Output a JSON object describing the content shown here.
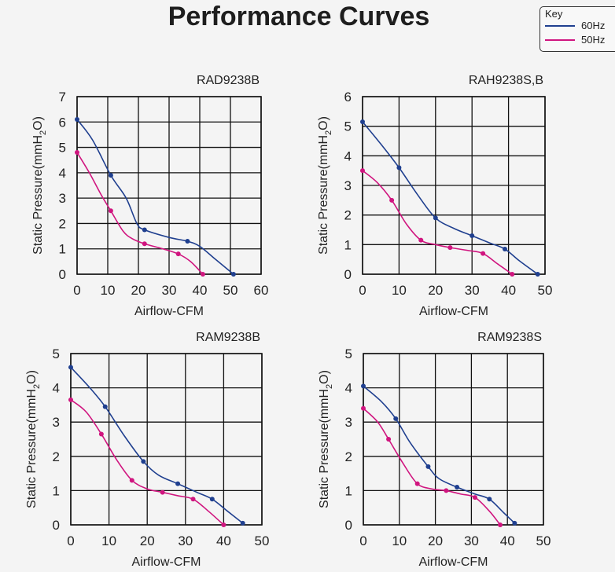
{
  "title": "Performance Curves",
  "legend": {
    "title": "Key",
    "items": [
      {
        "label": "60Hz",
        "color": "#1f3f8f"
      },
      {
        "label": "50Hz",
        "color": "#d0157f"
      }
    ]
  },
  "chart_data": [
    {
      "type": "line",
      "title": "RAD9238B",
      "xlabel": "Airflow-CFM",
      "ylabel": "Static Pressure(mmH2O)",
      "xlim": [
        0,
        60
      ],
      "ylim": [
        0,
        7
      ],
      "xticks": [
        0,
        10,
        20,
        30,
        40,
        50,
        60
      ],
      "yticks": [
        0,
        1,
        2,
        3,
        4,
        5,
        6,
        7
      ],
      "grid": true,
      "series": [
        {
          "name": "60Hz",
          "color": "#1f3f8f",
          "x": [
            0,
            11,
            22,
            36,
            51
          ],
          "y": [
            6.1,
            3.9,
            1.75,
            1.3,
            0
          ],
          "curve": [
            [
              0,
              6.1
            ],
            [
              5,
              5.3
            ],
            [
              11,
              3.9
            ],
            [
              16,
              3.0
            ],
            [
              19.5,
              2.0
            ],
            [
              22,
              1.75
            ],
            [
              30,
              1.45
            ],
            [
              36,
              1.3
            ],
            [
              40,
              1.1
            ],
            [
              45,
              0.6
            ],
            [
              51,
              0
            ]
          ]
        },
        {
          "name": "50Hz",
          "color": "#d0157f",
          "x": [
            0,
            11,
            22,
            33,
            41
          ],
          "y": [
            4.8,
            2.5,
            1.2,
            0.8,
            0
          ],
          "curve": [
            [
              0,
              4.8
            ],
            [
              4,
              4.0
            ],
            [
              8,
              3.1
            ],
            [
              11,
              2.5
            ],
            [
              15,
              1.7
            ],
            [
              18,
              1.4
            ],
            [
              22,
              1.2
            ],
            [
              28,
              1.0
            ],
            [
              33,
              0.8
            ],
            [
              37,
              0.5
            ],
            [
              41,
              0
            ]
          ]
        }
      ]
    },
    {
      "type": "line",
      "title": "RAH9238S,B",
      "xlabel": "Airflow-CFM",
      "ylabel": "Static Pressure(mmH2O)",
      "xlim": [
        0,
        50
      ],
      "ylim": [
        0,
        6
      ],
      "xticks": [
        0,
        10,
        20,
        30,
        40,
        50
      ],
      "yticks": [
        0,
        1,
        2,
        3,
        4,
        5,
        6
      ],
      "grid": true,
      "series": [
        {
          "name": "60Hz",
          "color": "#1f3f8f",
          "x": [
            0,
            10,
            20,
            30,
            39,
            48
          ],
          "y": [
            5.15,
            3.6,
            1.9,
            1.3,
            0.85,
            0
          ],
          "curve": [
            [
              0,
              5.15
            ],
            [
              5,
              4.4
            ],
            [
              10,
              3.6
            ],
            [
              15,
              2.7
            ],
            [
              20,
              1.9
            ],
            [
              25,
              1.55
            ],
            [
              30,
              1.3
            ],
            [
              35,
              1.05
            ],
            [
              39,
              0.85
            ],
            [
              43,
              0.45
            ],
            [
              48,
              0
            ]
          ]
        },
        {
          "name": "50Hz",
          "color": "#d0157f",
          "x": [
            0,
            8,
            16,
            24,
            33,
            41
          ],
          "y": [
            3.5,
            2.5,
            1.15,
            0.9,
            0.7,
            0
          ],
          "curve": [
            [
              0,
              3.5
            ],
            [
              4,
              3.1
            ],
            [
              8,
              2.5
            ],
            [
              12,
              1.7
            ],
            [
              16,
              1.15
            ],
            [
              20,
              1.0
            ],
            [
              24,
              0.9
            ],
            [
              29,
              0.8
            ],
            [
              33,
              0.7
            ],
            [
              37,
              0.35
            ],
            [
              41,
              0
            ]
          ]
        }
      ]
    },
    {
      "type": "line",
      "title": "RAM9238B",
      "xlabel": "Airflow-CFM",
      "ylabel": "Static Pressure(mmH2O)",
      "xlim": [
        0,
        50
      ],
      "ylim": [
        0,
        5
      ],
      "xticks": [
        0,
        10,
        20,
        30,
        40,
        50
      ],
      "yticks": [
        0,
        1,
        2,
        3,
        4,
        5
      ],
      "grid": true,
      "series": [
        {
          "name": "60Hz",
          "color": "#1f3f8f",
          "x": [
            0,
            9,
            19,
            28,
            37,
            45
          ],
          "y": [
            4.6,
            3.45,
            1.85,
            1.2,
            0.75,
            0.05
          ],
          "curve": [
            [
              0,
              4.6
            ],
            [
              5,
              4.0
            ],
            [
              9,
              3.45
            ],
            [
              14,
              2.6
            ],
            [
              19,
              1.85
            ],
            [
              23,
              1.45
            ],
            [
              28,
              1.2
            ],
            [
              33,
              0.95
            ],
            [
              37,
              0.75
            ],
            [
              41,
              0.4
            ],
            [
              45,
              0.05
            ]
          ]
        },
        {
          "name": "50Hz",
          "color": "#d0157f",
          "x": [
            0,
            8,
            16,
            24,
            32,
            40
          ],
          "y": [
            3.65,
            2.65,
            1.3,
            0.95,
            0.75,
            0
          ],
          "curve": [
            [
              0,
              3.65
            ],
            [
              4,
              3.3
            ],
            [
              8,
              2.65
            ],
            [
              12,
              1.9
            ],
            [
              16,
              1.3
            ],
            [
              20,
              1.05
            ],
            [
              24,
              0.95
            ],
            [
              28,
              0.85
            ],
            [
              32,
              0.75
            ],
            [
              36,
              0.4
            ],
            [
              40,
              0
            ]
          ]
        }
      ]
    },
    {
      "type": "line",
      "title": "RAM9238S",
      "xlabel": "Airflow-CFM",
      "ylabel": "Static Pressure(mmH2O)",
      "xlim": [
        0,
        50
      ],
      "ylim": [
        0,
        5
      ],
      "xticks": [
        0,
        10,
        20,
        30,
        40,
        50
      ],
      "yticks": [
        0,
        1,
        2,
        3,
        4,
        5
      ],
      "grid": true,
      "series": [
        {
          "name": "60Hz",
          "color": "#1f3f8f",
          "x": [
            0,
            9,
            18,
            26,
            35,
            42
          ],
          "y": [
            4.05,
            3.1,
            1.7,
            1.1,
            0.75,
            0.05
          ],
          "curve": [
            [
              0,
              4.05
            ],
            [
              5,
              3.6
            ],
            [
              9,
              3.1
            ],
            [
              13,
              2.4
            ],
            [
              18,
              1.7
            ],
            [
              21,
              1.35
            ],
            [
              26,
              1.1
            ],
            [
              31,
              0.9
            ],
            [
              35,
              0.75
            ],
            [
              39,
              0.35
            ],
            [
              42,
              0.05
            ]
          ]
        },
        {
          "name": "50Hz",
          "color": "#d0157f",
          "x": [
            0,
            7,
            15,
            23,
            31,
            38
          ],
          "y": [
            3.4,
            2.5,
            1.2,
            1.0,
            0.8,
            0
          ],
          "curve": [
            [
              0,
              3.4
            ],
            [
              4,
              3.0
            ],
            [
              7,
              2.5
            ],
            [
              11,
              1.8
            ],
            [
              15,
              1.2
            ],
            [
              19,
              1.05
            ],
            [
              23,
              1.0
            ],
            [
              27,
              0.9
            ],
            [
              31,
              0.8
            ],
            [
              35,
              0.4
            ],
            [
              38,
              0
            ]
          ]
        }
      ]
    }
  ]
}
